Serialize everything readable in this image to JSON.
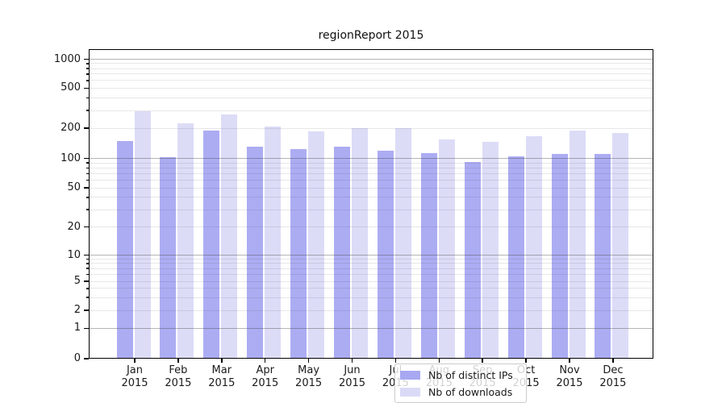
{
  "chart_data": {
    "type": "bar",
    "title": "regionReport 2015",
    "categories": [
      "Jan 2015",
      "Feb 2015",
      "Mar 2015",
      "Apr 2015",
      "May 2015",
      "Jun 2015",
      "Jul 2015",
      "Aug 2015",
      "Sep 2015",
      "Oct 2015",
      "Nov 2015",
      "Dec 2015"
    ],
    "series": [
      {
        "name": "Nb of distinct IPs",
        "color": "#a8a8f2",
        "values": [
          150,
          103,
          190,
          130,
          125,
          132,
          120,
          114,
          93,
          105,
          111,
          112
        ]
      },
      {
        "name": "Nb of downloads",
        "color": "#dadaf7",
        "values": [
          295,
          225,
          272,
          206,
          187,
          200,
          201,
          156,
          147,
          166,
          191,
          178
        ]
      }
    ],
    "yscale": "symlog",
    "y_ticks": [
      1000,
      500,
      200,
      100,
      50,
      20,
      10,
      5,
      2,
      1,
      0
    ],
    "ylim": [
      0,
      1250
    ],
    "xlabel": "",
    "ylabel": "",
    "grid": "on",
    "grid_major_color": "#b4b4b4",
    "grid_minor_color": "#ebebeb",
    "legend_position": "lower center"
  }
}
